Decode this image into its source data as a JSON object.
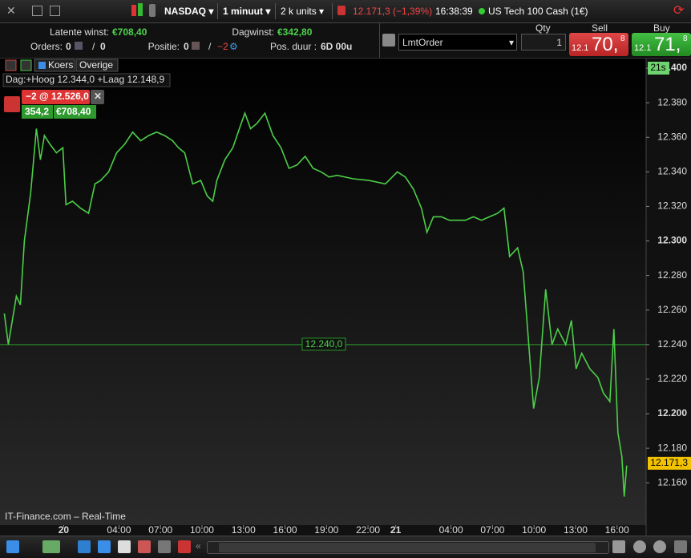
{
  "toolbar": {
    "instrument": "NASDAQ",
    "interval": "1 minuut",
    "units": "2 k units",
    "price": "12.171,3 (−1,39%)",
    "time": "16:38:39",
    "name": "US Tech 100 Cash (1€)"
  },
  "account": {
    "latent_label": "Latente winst:",
    "latent_value": "€708,40",
    "day_label": "Dagwinst:",
    "day_value": "€342,80",
    "orders_label": "Orders:",
    "orders_value": "0",
    "orders_sep": "/",
    "orders_total": "0",
    "position_label": "Positie:",
    "position_value": "0",
    "position_sep": "/",
    "position_total": "−2",
    "duration_label": "Pos. duur :",
    "duration_value": "6D 00u"
  },
  "order_panel": {
    "order_type": "LmtOrder",
    "qty_label": "Qty",
    "qty": "1",
    "sell_label": "Sell",
    "sell_prefix": "12.1",
    "sell_main": "70,",
    "sell_suffix": "8",
    "buy_label": "Buy",
    "buy_prefix": "12.1",
    "buy_main": "71,",
    "buy_suffix": "8"
  },
  "chart_data": {
    "type": "line",
    "tabs": [
      "Koers",
      "Overige"
    ],
    "day_range": "Dag:+Hoog 12.344,0 +Laag 12.148,9",
    "position_label": "−2 @ 12.526,0",
    "position_points": "354,2",
    "position_profit": "€708,40",
    "countdown": "21s",
    "footer": "IT-Finance.com – Real-Time",
    "level": {
      "value": 12240,
      "label": "12.240,0"
    },
    "last": {
      "value": 12171.3,
      "label": "12.171,3"
    },
    "x": [
      -4.29,
      -4.0,
      -3.42,
      -3.13,
      -2.84,
      -2.38,
      -1.97,
      -1.68,
      -1.39,
      -0.99,
      -0.52,
      -0.06,
      0.17,
      0.64,
      1.22,
      1.8,
      2.26,
      2.67,
      3.25,
      3.83,
      4.41,
      4.99,
      5.57,
      6.14,
      6.72,
      7.3,
      7.88,
      8.29,
      8.75,
      9.33,
      9.91,
      10.38,
      10.78,
      11.07,
      11.65,
      12.23,
      12.7,
      13.1,
      13.51,
      13.97,
      14.55,
      15.13,
      15.71,
      16.29,
      16.87,
      17.45,
      18.03,
      18.61,
      19.19,
      19.77,
      20.93,
      22.09,
      23.25,
      24.12,
      24.7,
      25.28,
      25.86,
      26.26,
      26.72,
      27.3,
      27.88,
      28.46,
      29.04,
      29.62,
      30.2,
      30.78,
      31.36,
      31.83,
      32.23,
      32.81,
      33.22,
      33.57,
      33.97,
      34.38,
      34.84,
      35.3,
      35.71,
      36.29,
      36.7,
      37.04,
      37.45,
      38.03,
      38.61,
      39.01,
      39.48,
      39.77,
      40.06,
      40.35,
      40.52,
      40.7
    ],
    "series": [
      {
        "color": "#4ccf48",
        "values": [
          12258,
          12240,
          12268,
          12263,
          12300,
          12328,
          12365,
          12347,
          12361,
          12356,
          12351,
          12354,
          12321,
          12323,
          12319,
          12316,
          12333,
          12335,
          12340,
          12351,
          12356,
          12363,
          12358,
          12361,
          12363,
          12361,
          12358,
          12354,
          12351,
          12333,
          12335,
          12326,
          12323,
          12335,
          12347,
          12354,
          12365,
          12374,
          12365,
          12368,
          12374,
          12361,
          12354,
          12342,
          12344,
          12349,
          12342,
          12340,
          12337,
          12338,
          12336,
          12335,
          12333,
          12340,
          12337,
          12330,
          12319,
          12305,
          12314,
          12314,
          12312,
          12312,
          12312,
          12314,
          12312,
          12314,
          12316,
          12319,
          12291,
          12296,
          12282,
          12245,
          12203,
          12221,
          12272,
          12240,
          12249,
          12240,
          12254,
          12226,
          12235,
          12226,
          12221,
          12212,
          12207,
          12249,
          12189,
          12175,
          12152,
          12170
        ]
      }
    ],
    "xlim": [
      -4.6,
      42.1
    ],
    "ylim": [
      12135.5,
      12405.6
    ],
    "xticks": [
      {
        "value": 0,
        "label": "20"
      },
      {
        "value": 4,
        "label": "04:00"
      },
      {
        "value": 7,
        "label": "07:00"
      },
      {
        "value": 10,
        "label": "10:00"
      },
      {
        "value": 13,
        "label": "13:00"
      },
      {
        "value": 16,
        "label": "16:00"
      },
      {
        "value": 19,
        "label": "19:00"
      },
      {
        "value": 22,
        "label": "22:00"
      },
      {
        "value": 24,
        "label": "21"
      },
      {
        "value": 28,
        "label": "04:00"
      },
      {
        "value": 31,
        "label": "07:00"
      },
      {
        "value": 34,
        "label": "10:00"
      },
      {
        "value": 37,
        "label": "13:00"
      },
      {
        "value": 40,
        "label": "16:00"
      }
    ],
    "yticks": [
      {
        "value": 12160,
        "label": "12.160"
      },
      {
        "value": 12180,
        "label": "12.180"
      },
      {
        "value": 12200,
        "label": "12.200"
      },
      {
        "value": 12220,
        "label": "12.220"
      },
      {
        "value": 12240,
        "label": "12.240"
      },
      {
        "value": 12260,
        "label": "12.260"
      },
      {
        "value": 12280,
        "label": "12.280"
      },
      {
        "value": 12300,
        "label": "12.300"
      },
      {
        "value": 12320,
        "label": "12.320"
      },
      {
        "value": 12340,
        "label": "12.340"
      },
      {
        "value": 12360,
        "label": "12.360"
      },
      {
        "value": 12380,
        "label": "12.380"
      },
      {
        "value": 12400,
        "label": "12.400"
      }
    ]
  }
}
